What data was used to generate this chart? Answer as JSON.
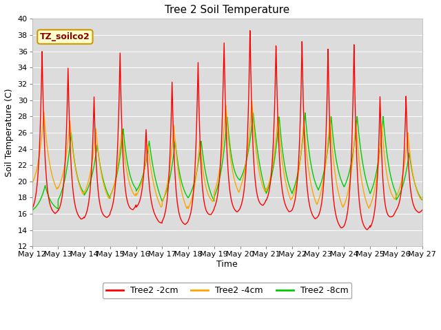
{
  "title": "Tree 2 Soil Temperature",
  "xlabel": "Time",
  "ylabel": "Soil Temperature (C)",
  "ylim": [
    12,
    40
  ],
  "yticks": [
    12,
    14,
    16,
    18,
    20,
    22,
    24,
    26,
    28,
    30,
    32,
    34,
    36,
    38,
    40
  ],
  "annotation_text": "TZ_soilco2",
  "bg_color": "#dcdcdc",
  "legend_labels": [
    "Tree2 -2cm",
    "Tree2 -4cm",
    "Tree2 -8cm"
  ],
  "colors": [
    "#ff0000",
    "#ffa500",
    "#00cc00"
  ],
  "line_width": 1.0,
  "x_tick_labels": [
    "May 12",
    "May 13",
    "May 14",
    "May 15",
    "May 16",
    "May 17",
    "May 18",
    "May 19",
    "May 20",
    "May 21",
    "May 22",
    "May 23",
    "May 24",
    "May 25",
    "May 26",
    "May 27"
  ],
  "red_peaks": [
    36,
    34,
    30.5,
    36,
    26.5,
    32.5,
    35,
    37.5,
    39,
    37,
    37.5,
    36.5,
    37,
    30.5,
    30.5
  ],
  "red_troughs": [
    16,
    15.8,
    15,
    15.5,
    16.5,
    14.5,
    14.5,
    16,
    16,
    17,
    15.8,
    15,
    13.8,
    13.8,
    16
  ],
  "org_peaks": [
    28.5,
    27.5,
    26.5,
    26.5,
    24.5,
    27,
    25,
    29.5,
    30,
    28,
    27.5,
    28,
    27.5,
    27,
    26
  ],
  "org_troughs": [
    18,
    17.5,
    17,
    16.5,
    17,
    15.5,
    15,
    16.5,
    17,
    17,
    16,
    15.5,
    15,
    15,
    16.5
  ],
  "grn_peaks": [
    19.5,
    26,
    24.5,
    26.5,
    25,
    25,
    25,
    28,
    28.5,
    28,
    28.5,
    28,
    28,
    28,
    23.5
  ],
  "grn_troughs": [
    15.8,
    16,
    17,
    16.5,
    17.5,
    16,
    16.5,
    16,
    18.5,
    16.5,
    16.5,
    17,
    17.5,
    16.5,
    16.5
  ],
  "figsize": [
    6.4,
    4.8
  ],
  "dpi": 100
}
